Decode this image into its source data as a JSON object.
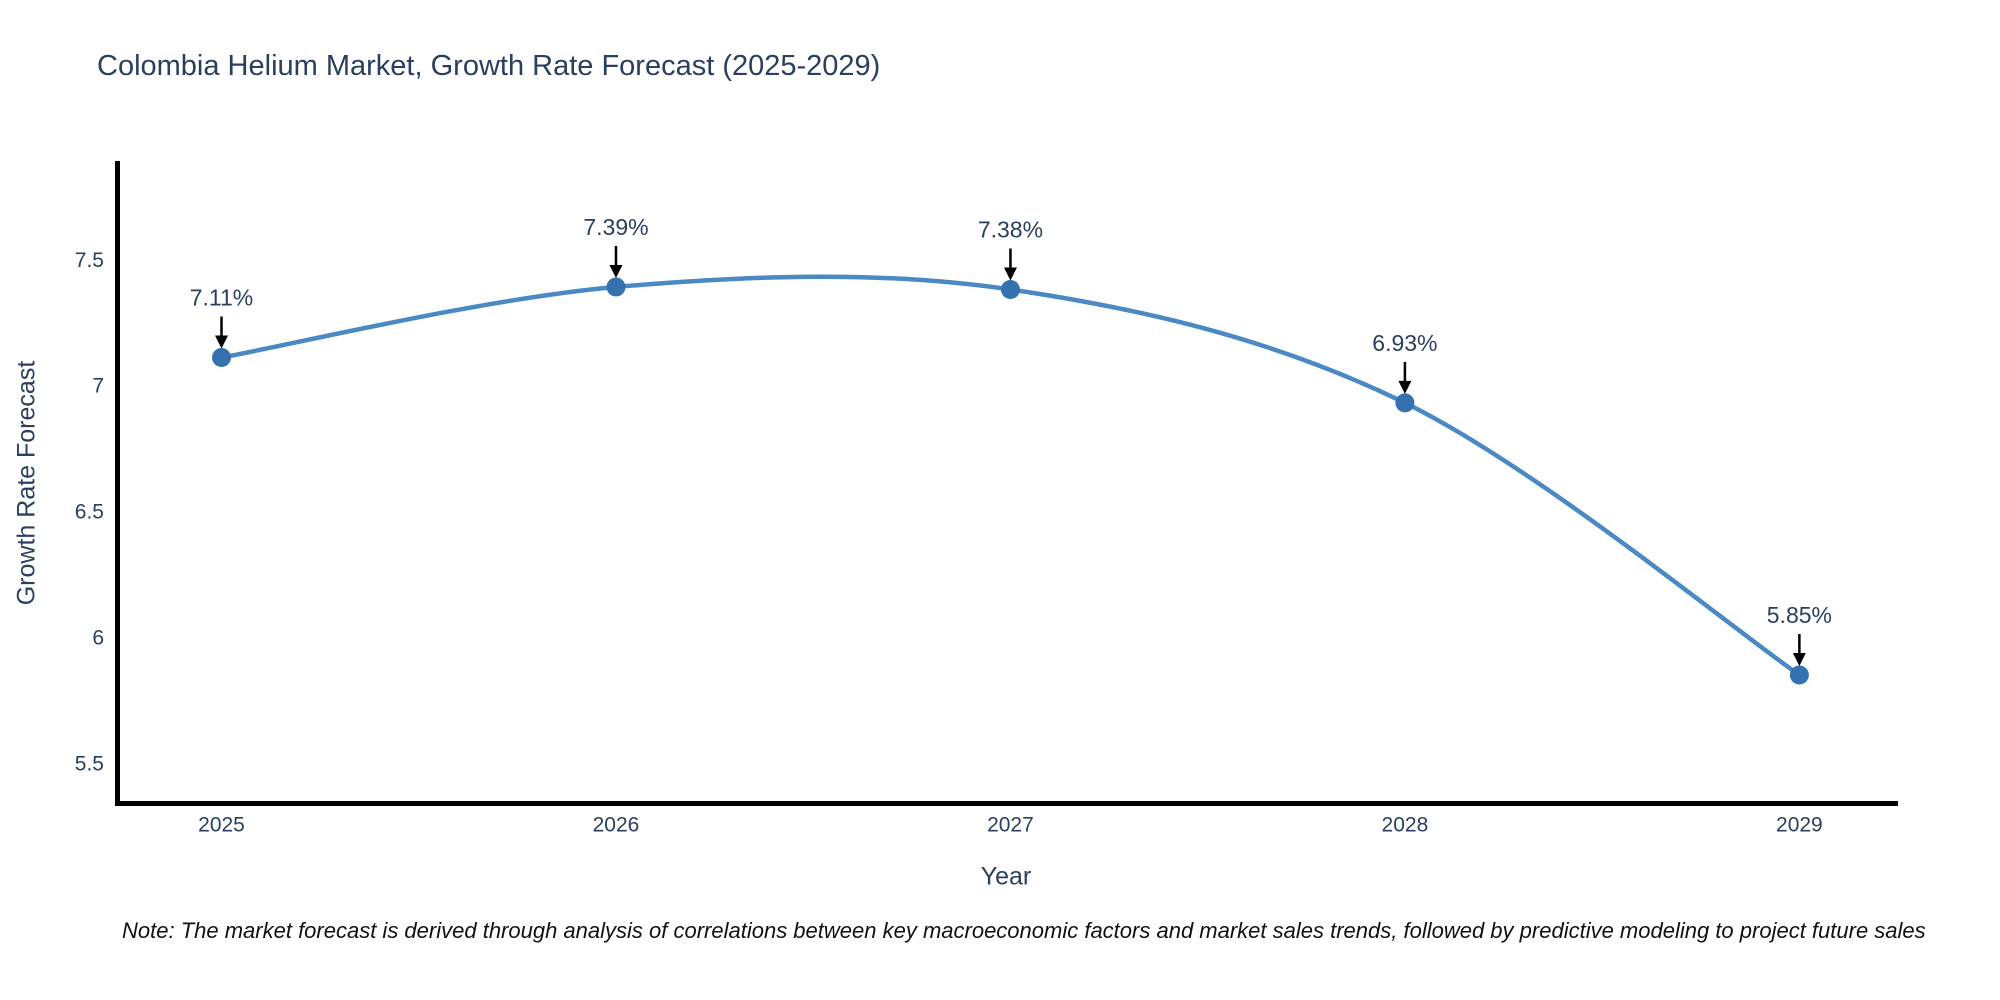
{
  "chart": {
    "title": "Colombia Helium Market, Growth Rate Forecast (2025-2029)",
    "x_axis_title": "Year",
    "y_axis_title": "Growth Rate Forecast",
    "note": "Note: The market forecast is derived through analysis of correlations between key macroeconomic factors and market sales trends, followed by predictive modeling to project future sales"
  },
  "chart_data": {
    "type": "line",
    "title": "Colombia Helium Market, Growth Rate Forecast (2025-2029)",
    "xlabel": "Year",
    "ylabel": "Growth Rate Forecast",
    "x": [
      2025,
      2026,
      2027,
      2028,
      2029
    ],
    "values": [
      7.11,
      7.39,
      7.38,
      6.93,
      5.85
    ],
    "point_labels": [
      "7.11%",
      "7.39%",
      "7.38%",
      "6.93%",
      "5.85%"
    ],
    "x_tick_labels": [
      "2025",
      "2026",
      "2027",
      "2028",
      "2029"
    ],
    "y_ticks": [
      5.5,
      6,
      6.5,
      7,
      7.5
    ],
    "xlim": [
      2024.73,
      2029.25
    ],
    "ylim": [
      5.33,
      7.89
    ],
    "line_shape": "spline",
    "grid": false,
    "legend_position": "none",
    "annotations": "value labels with black arrows pointing to each marker",
    "colors": {
      "line": "#4a89c3",
      "marker": "#3471ae",
      "axis_line": "#000000",
      "tick_text": "#2a3f5f",
      "title_text": "#2a3f5f",
      "annotation_text": "#2a3f5f",
      "annotation_arrow": "#000000",
      "background": "#ffffff"
    }
  }
}
